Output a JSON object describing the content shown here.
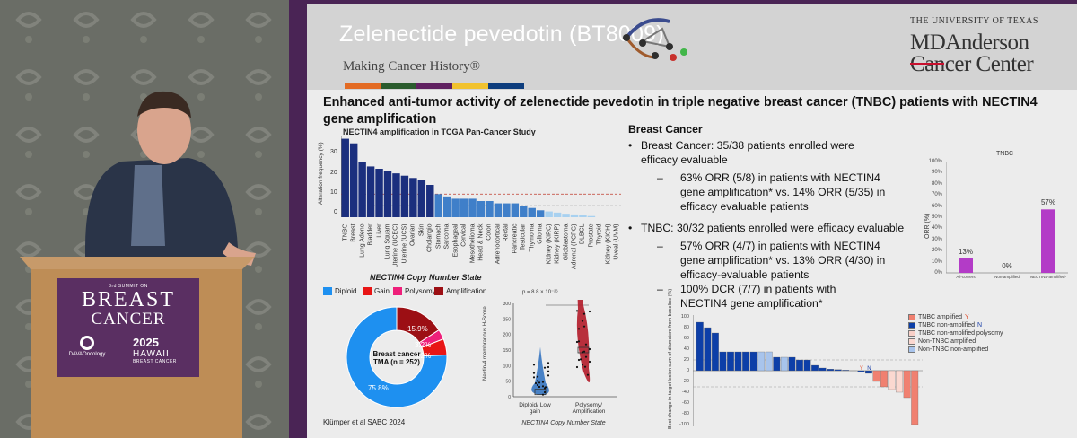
{
  "camera": {
    "podium_event_top": "3rd SUMMIT ON",
    "podium_event_line1": "BREAST",
    "podium_event_line2": "CANCER",
    "podium_org": "DAVAOncology",
    "podium_year": "2025",
    "podium_location": "HAWAII",
    "podium_location_sub": "BREAST CANCER"
  },
  "slide": {
    "header": {
      "title": "Zelenectide pevedotin (BT8009)",
      "tagline": "Making Cancer History®",
      "institution_line1": "THE UNIVERSITY OF TEXAS",
      "institution_line2": "MDAnderson",
      "institution_line3": "Cancer Center",
      "bar_colors": [
        "#e36b24",
        "#2a5b2d",
        "#5f2060",
        "#f1c22e",
        "#0d3d7d"
      ]
    },
    "headline": "Enhanced anti-tumor activity of zelenectide pevedotin in triple negative breast cancer (TNBC) patients with NECTIN4 gene amplification",
    "citation": "Klümper et al SABC 2024",
    "bullets": {
      "section_title": "Breast Cancer",
      "b1": "Breast Cancer: 35/38 patients enrolled were efficacy evaluable",
      "b1_sub": "63% ORR (5/8) in patients with NECTIN4 gene amplification* vs. 14% ORR (5/35) in efficacy evaluable patients",
      "b2": "TNBC: 30/32 patients enrolled were efficacy evaluable",
      "b2_sub1": "57% ORR (4/7) in patients with NECTIN4 gene amplification* vs. 13% ORR (4/30) in efficacy-evaluable patients",
      "b2_sub2": "100% DCR (7/7) in patients with NECTIN4 gene amplification*"
    }
  },
  "chart_data": [
    {
      "type": "bar",
      "title": "NECTIN4 amplification in TCGA Pan-Cancer Study",
      "ylabel": "Alteration frequency (%)",
      "ylim": [
        0,
        35
      ],
      "yticks": [
        "30",
        "20",
        "10",
        "0"
      ],
      "categories": [
        "TNBC",
        "Breast",
        "Lung Adeno",
        "Bladder",
        "Liver",
        "Lung Squam",
        "Uterine (UCEC)",
        "Uterine (UCS)",
        "Ovarian",
        "Skin",
        "Cholangio",
        "Stomach",
        "Sarcoma",
        "Esophageal",
        "Cervical",
        "Mesothelioma",
        "Head & Neck",
        "Colon",
        "Adrenocortical",
        "Rectal",
        "Pancreatic",
        "Testicular",
        "Thymoma",
        "Glioma",
        "Kidney (KIRC)",
        "Kidney (KIRP)",
        "Glioblastoma",
        "Adrenal (PCPG)",
        "DLBCL",
        "Prostate",
        "Thyroid",
        "Kidney (KICH)",
        "Uveal (UVM)"
      ],
      "values": [
        34,
        32,
        24,
        22,
        21,
        20,
        19,
        18,
        17,
        16,
        14,
        10,
        9,
        8,
        8,
        8,
        7,
        7,
        6,
        6,
        6,
        5,
        4,
        3,
        2.5,
        2,
        1.5,
        1.2,
        1,
        0.5,
        0,
        0,
        0
      ],
      "colors": {
        "high": "#1b2f7e",
        "mid": "#3f7fc9",
        "low": "#a8d1f0"
      },
      "reference_lines": [
        10,
        5
      ]
    },
    {
      "type": "pie",
      "title": "NECTIN4 Copy Number State",
      "center_label_line1": "Breast cancer",
      "center_label_line2": "TMA (n = 252)",
      "slices": [
        {
          "label": "Diploid",
          "value": 75.8,
          "value_label": "75.8%",
          "color": "#1e90f0"
        },
        {
          "label": "Gain",
          "value": 5.2,
          "value_label": "5.2%",
          "color": "#e81515"
        },
        {
          "label": "Polysomy",
          "value": 3.2,
          "value_label": "3.2%",
          "color": "#ee1f7a"
        },
        {
          "label": "Amplification",
          "value": 15.9,
          "value_label": "15.9%",
          "color": "#9c0f14"
        }
      ]
    },
    {
      "type": "scatter",
      "title": "",
      "pvalue_label": "p = 8.8 × 10⁻²⁶",
      "ylabel": "Nectin-4 membranous H-Score",
      "ylim": [
        0,
        300
      ],
      "yticks": [
        "300",
        "250",
        "200",
        "150",
        "100",
        "50",
        "0"
      ],
      "categories": [
        "Diploid/ Low gain",
        "Polysomy/ Amplification"
      ],
      "xlabel": "NECTIN4 Copy Number State",
      "medians": [
        10,
        150
      ]
    },
    {
      "type": "bar",
      "title": "TNBC",
      "ylabel": "ORR (%)",
      "ylim": [
        0,
        100
      ],
      "yticks": [
        "100%",
        "90%",
        "80%",
        "70%",
        "60%",
        "50%",
        "40%",
        "30%",
        "20%",
        "10%",
        "0%"
      ],
      "categories": [
        "All-comers",
        "Non-amplified",
        "NECTIN4-amplified*"
      ],
      "values": [
        13,
        0,
        57
      ],
      "value_labels": [
        "13%",
        "0%",
        "57%"
      ],
      "color": "#b33bc7"
    },
    {
      "type": "bar",
      "title": "",
      "ylabel": "Best change in target lesion sum of diameters from baseline (%)",
      "ylim": [
        -100,
        100
      ],
      "yticks": [
        "100",
        "80",
        "60",
        "40",
        "20",
        "0",
        "-20",
        "-40",
        "-60",
        "-80",
        "-100"
      ],
      "reference_lines": [
        20,
        -30
      ],
      "values": [
        90,
        80,
        70,
        35,
        35,
        35,
        35,
        35,
        35,
        35,
        25,
        25,
        25,
        20,
        20,
        10,
        5,
        3,
        2,
        1,
        0,
        -2,
        -5,
        -20,
        -30,
        -35,
        -40,
        -50,
        -100
      ],
      "groups": [
        "TNBC non-amplified",
        "TNBC non-amplified",
        "TNBC non-amplified",
        "TNBC non-amplified",
        "TNBC non-amplified",
        "TNBC non-amplified",
        "TNBC non-amplified",
        "TNBC non-amplified",
        "Non-TNBC non-amplified",
        "Non-TNBC non-amplified",
        "TNBC non-amplified",
        "Non-TNBC non-amplified",
        "TNBC non-amplified",
        "TNBC non-amplified",
        "TNBC non-amplified",
        "TNBC non-amplified",
        "TNBC non-amplified",
        "TNBC non-amplified",
        "TNBC non-amplified",
        "TNBC non-amplified",
        "TNBC non-amplified",
        "TNBC non-amplified",
        "TNBC non-amplified",
        "TNBC amplified",
        "TNBC amplified",
        "Non-TNBC amplified",
        "Non-TNBC amplified",
        "TNBC amplified",
        "TNBC amplified"
      ],
      "markers": [
        {
          "index": 21,
          "label": "Y",
          "color": "#e0502f"
        },
        {
          "index": 22,
          "label": "N",
          "color": "#1a3fa8"
        }
      ],
      "legend": [
        {
          "label": "TNBC amplified",
          "suffix": "Y",
          "suffix_color": "#e0502f",
          "color": "#f08070"
        },
        {
          "label": "TNBC non-amplified",
          "suffix": "N",
          "suffix_color": "#1a3fa8",
          "color": "#0d3fa8"
        },
        {
          "label": "TNBC non-amplified polysomy",
          "suffix": "",
          "color": "#f8d0c8"
        },
        {
          "label": "Non-TNBC amplified",
          "suffix": "",
          "color": "#fbd8d0"
        },
        {
          "label": "Non-TNBC non-amplified",
          "suffix": "",
          "color": "#a8c4ec"
        }
      ]
    }
  ]
}
